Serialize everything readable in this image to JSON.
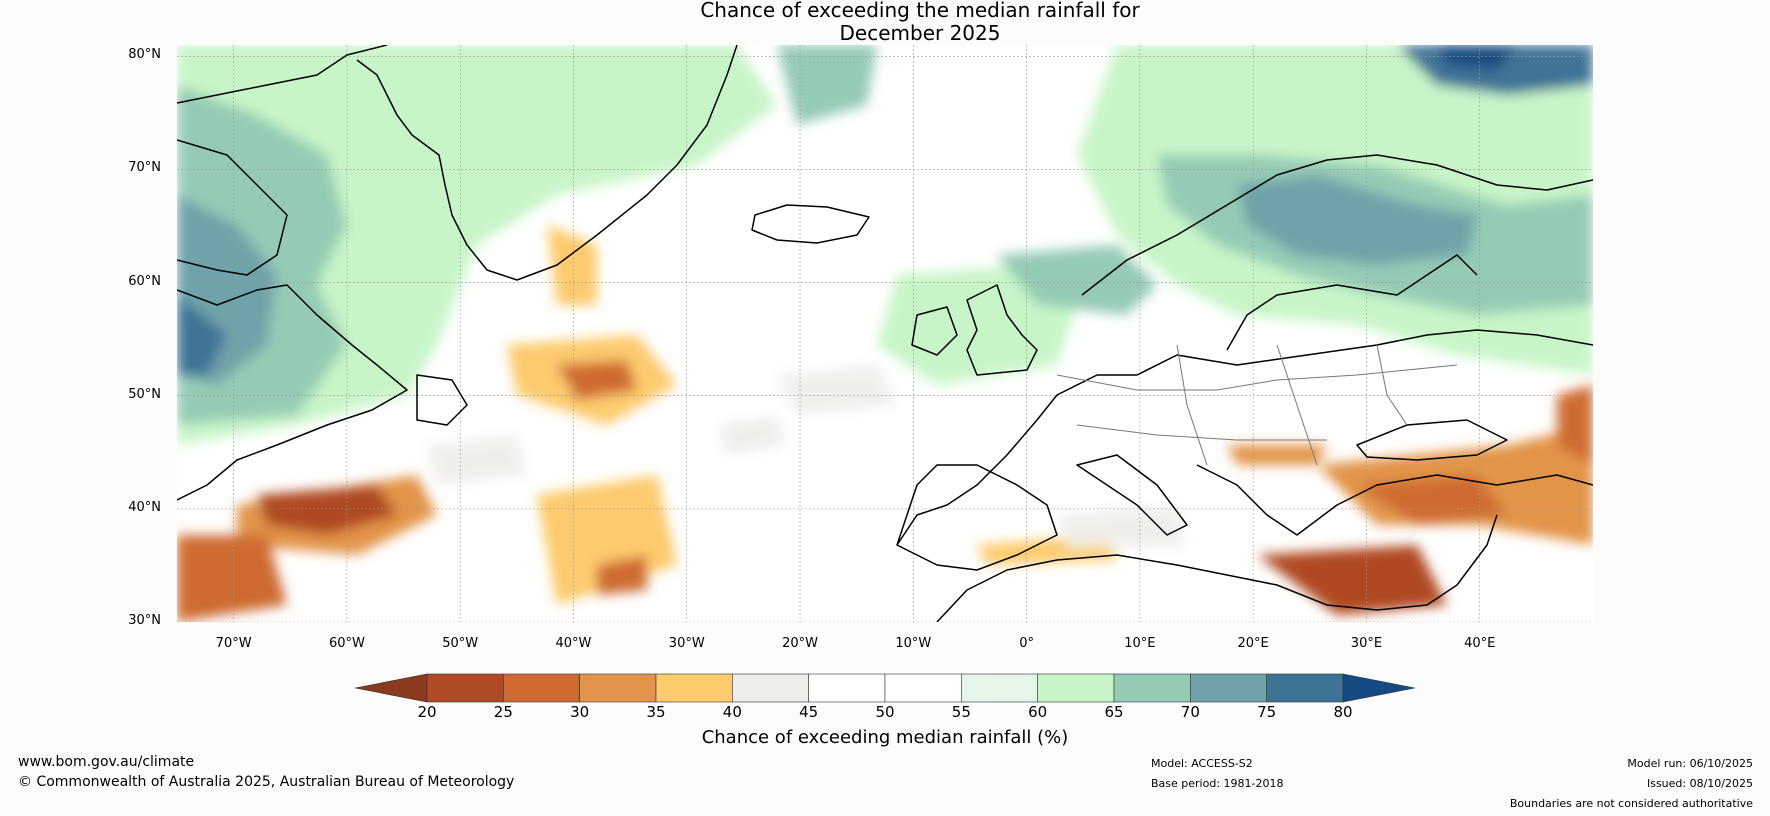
{
  "title_line1": "Chance of exceeding the median rainfall for",
  "title_line2": "December 2025",
  "map": {
    "lon_range": [
      -75,
      50
    ],
    "lat_range": [
      30,
      81
    ],
    "lat_ticks": [
      "80°N",
      "70°N",
      "60°N",
      "50°N",
      "40°N",
      "30°N"
    ],
    "lat_values": [
      80,
      70,
      60,
      50,
      40,
      30
    ],
    "lon_ticks": [
      "70°W",
      "60°W",
      "50°W",
      "40°W",
      "30°W",
      "20°W",
      "10°W",
      "0°",
      "10°E",
      "20°E",
      "30°E",
      "40°E"
    ],
    "lon_values": [
      -70,
      -60,
      -50,
      -40,
      -30,
      -20,
      -10,
      0,
      10,
      20,
      30,
      40
    ]
  },
  "colorbar": {
    "title": "Chance of exceeding median rainfall (%)",
    "ticks": [
      "20",
      "25",
      "30",
      "35",
      "40",
      "45",
      "50",
      "55",
      "60",
      "65",
      "70",
      "75",
      "80"
    ],
    "colors": [
      "#8b3a1f",
      "#b04a24",
      "#cf6a30",
      "#e2944a",
      "#fdca6d",
      "#efede9",
      "#ffffff",
      "#ffffff",
      "#e7f5e8",
      "#c7f5c8",
      "#95cbb5",
      "#6fa3a9",
      "#3f7396",
      "#134b82"
    ]
  },
  "footer": {
    "website": "www.bom.gov.au/climate",
    "copyright": "© Commonwealth of Australia 2025, Australian Bureau of Meteorology",
    "model": "Model: ACCESS-S2",
    "base_period": "Base period: 1981-2018",
    "model_run": "Model run: 06/10/2025",
    "issued": "Issued: 08/10/2025",
    "disclaimer": "Boundaries are not considered authoritative"
  }
}
